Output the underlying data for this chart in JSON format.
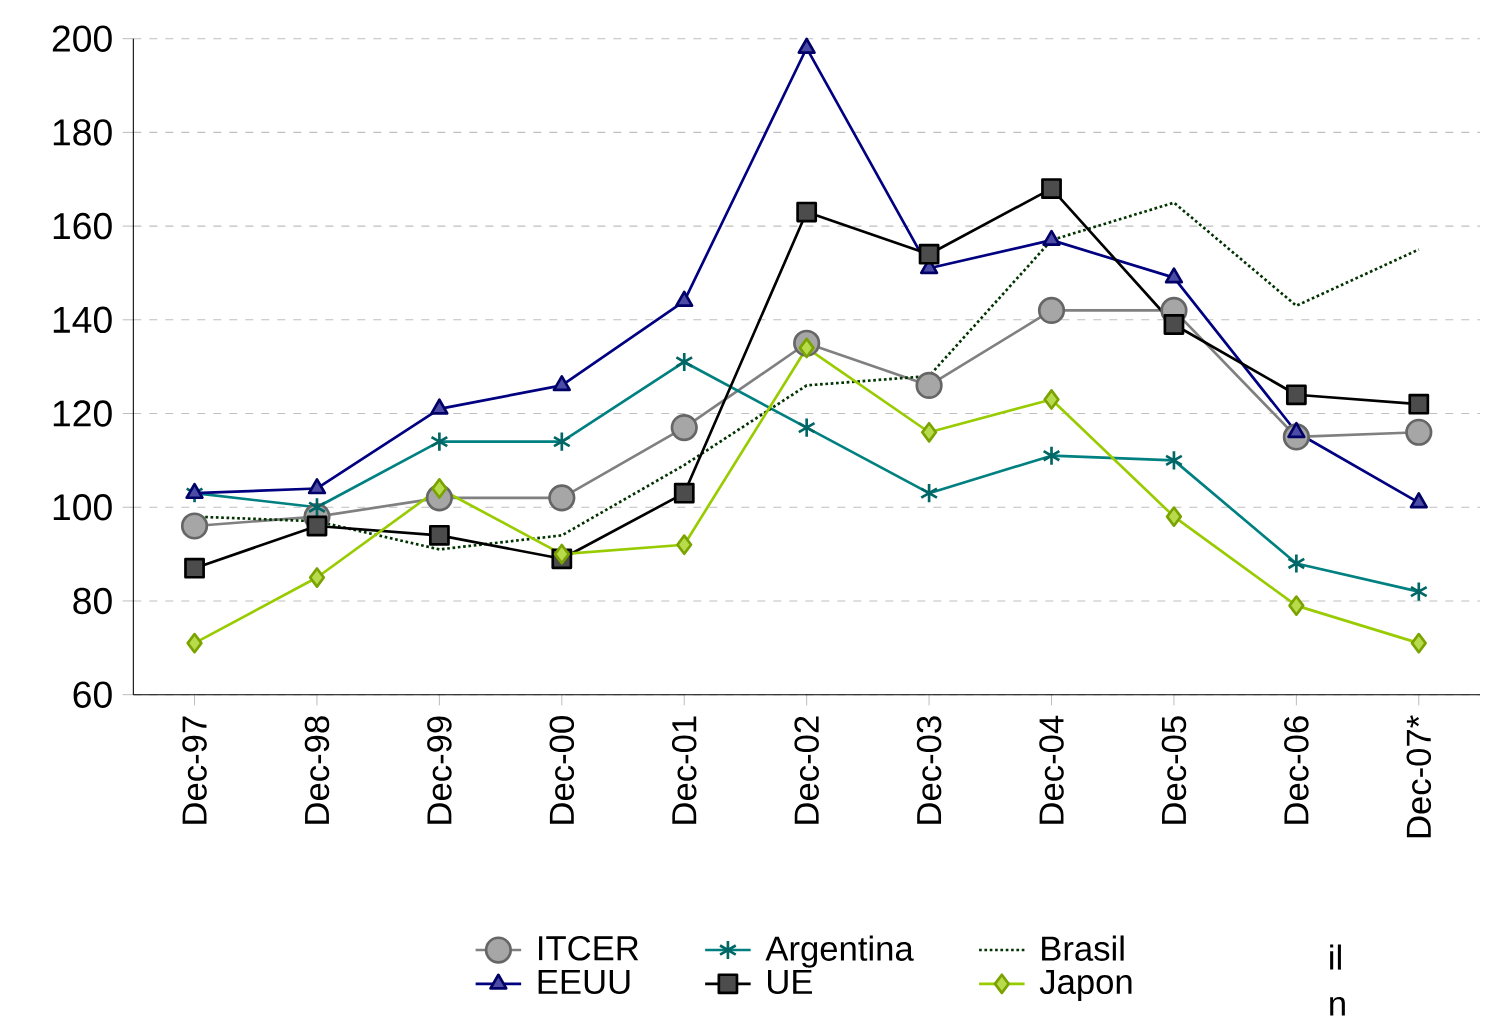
{
  "chart_data": {
    "type": "line",
    "categories": [
      "Dec-97",
      "Dec-98",
      "Dec-99",
      "Dec-00",
      "Dec-01",
      "Dec-02",
      "Dec-03",
      "Dec-04",
      "Dec-05",
      "Dec-06",
      "Dec-07*"
    ],
    "series": [
      {
        "name": "ITCER",
        "color": "#808080",
        "marker": "circle",
        "line_style": "solid",
        "values": [
          96,
          98,
          102,
          102,
          117,
          135,
          126,
          142,
          142,
          115,
          116
        ]
      },
      {
        "name": "Argentina",
        "color": "#008080",
        "marker": "cross",
        "line_style": "solid",
        "values": [
          103,
          100,
          114,
          114,
          131,
          117,
          103,
          111,
          110,
          88,
          82
        ]
      },
      {
        "name": "Brasil",
        "color": "#003300",
        "marker": "none",
        "line_style": "dotted",
        "values": [
          98,
          97,
          91,
          94,
          109,
          126,
          128,
          157,
          165,
          143,
          155
        ]
      },
      {
        "name": "EEUU",
        "color": "#000080",
        "marker": "triangle",
        "line_style": "solid",
        "values": [
          103,
          104,
          121,
          126,
          144,
          198,
          151,
          157,
          149,
          116,
          101
        ]
      },
      {
        "name": "UE",
        "color": "#000000",
        "marker": "square",
        "line_style": "solid",
        "values": [
          87,
          96,
          94,
          89,
          103,
          163,
          154,
          168,
          139,
          124,
          122
        ]
      },
      {
        "name": "Japon",
        "color": "#99cc00",
        "marker": "diamond",
        "line_style": "solid",
        "values": [
          71,
          85,
          104,
          90,
          92,
          134,
          116,
          123,
          98,
          79,
          71
        ]
      }
    ],
    "ylim": [
      60,
      200
    ],
    "yticks": [
      60,
      80,
      100,
      120,
      140,
      160,
      180,
      200
    ],
    "grid": "y",
    "legend": "bottom",
    "annotations": [
      "il",
      "n"
    ]
  }
}
